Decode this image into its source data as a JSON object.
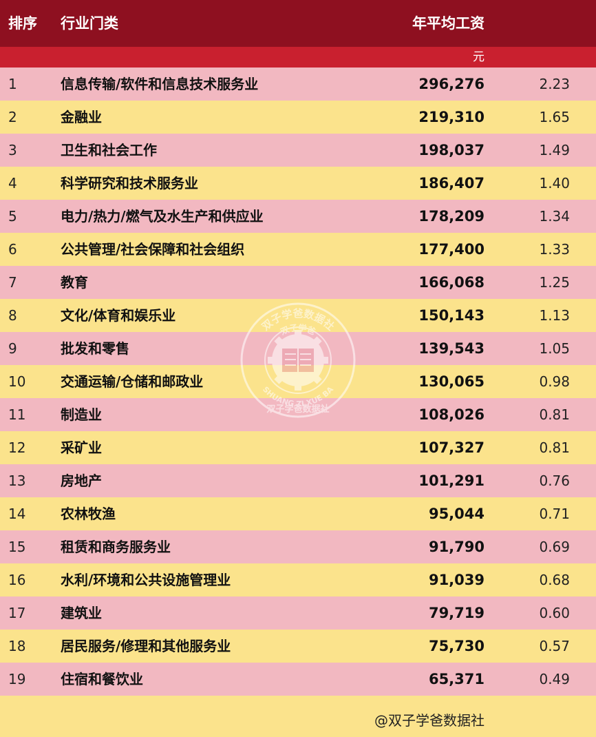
{
  "colors": {
    "header_bg": "#8e1020",
    "subheader_bg": "#c9202f",
    "row_pink": "#f2b8c1",
    "row_yellow": "#fbe38c",
    "watermark": "#ffffff"
  },
  "header": {
    "rank": "排序",
    "industry": "行业门类",
    "wage": "年平均工资",
    "unit": "元"
  },
  "chart_data": {
    "type": "table",
    "columns": [
      "排序",
      "行业门类",
      "年平均工资",
      ""
    ],
    "rows": [
      {
        "rank": "1",
        "industry": "信息传输/软件和信息技术服务业",
        "wage": "296,276",
        "ratio": "2.23"
      },
      {
        "rank": "2",
        "industry": "金融业",
        "wage": "219,310",
        "ratio": "1.65"
      },
      {
        "rank": "3",
        "industry": "卫生和社会工作",
        "wage": "198,037",
        "ratio": "1.49"
      },
      {
        "rank": "4",
        "industry": "科学研究和技术服务业",
        "wage": "186,407",
        "ratio": "1.40"
      },
      {
        "rank": "5",
        "industry": "电力/热力/燃气及水生产和供应业",
        "wage": "178,209",
        "ratio": "1.34"
      },
      {
        "rank": "6",
        "industry": "公共管理/社会保障和社会组织",
        "wage": "177,400",
        "ratio": "1.33"
      },
      {
        "rank": "7",
        "industry": "教育",
        "wage": "166,068",
        "ratio": "1.25"
      },
      {
        "rank": "8",
        "industry": "文化/体育和娱乐业",
        "wage": "150,143",
        "ratio": "1.13"
      },
      {
        "rank": "9",
        "industry": "批发和零售",
        "wage": "139,543",
        "ratio": "1.05"
      },
      {
        "rank": "10",
        "industry": "交通运输/仓储和邮政业",
        "wage": "130,065",
        "ratio": "0.98"
      },
      {
        "rank": "11",
        "industry": "制造业",
        "wage": "108,026",
        "ratio": "0.81"
      },
      {
        "rank": "12",
        "industry": "采矿业",
        "wage": "107,327",
        "ratio": "0.81"
      },
      {
        "rank": "13",
        "industry": "房地产",
        "wage": "101,291",
        "ratio": "0.76"
      },
      {
        "rank": "14",
        "industry": "农林牧渔",
        "wage": "95,044",
        "ratio": "0.71"
      },
      {
        "rank": "15",
        "industry": "租赁和商务服务业",
        "wage": "91,790",
        "ratio": "0.69"
      },
      {
        "rank": "16",
        "industry": "水利/环境和公共设施管理业",
        "wage": "91,039",
        "ratio": "0.68"
      },
      {
        "rank": "17",
        "industry": "建筑业",
        "wage": "79,719",
        "ratio": "0.60"
      },
      {
        "rank": "18",
        "industry": "居民服务/修理和其他服务业",
        "wage": "75,730",
        "ratio": "0.57"
      },
      {
        "rank": "19",
        "industry": "住宿和餐饮业",
        "wage": "65,371",
        "ratio": "0.49"
      }
    ]
  },
  "watermark": {
    "top_text": "双子学爸数据社",
    "bottom_text": "双子学爸数据社",
    "pinyin": "SHUANG ZI XUE BA",
    "inner_text": "双子学爸"
  },
  "footer": "@双子学爸数据社"
}
